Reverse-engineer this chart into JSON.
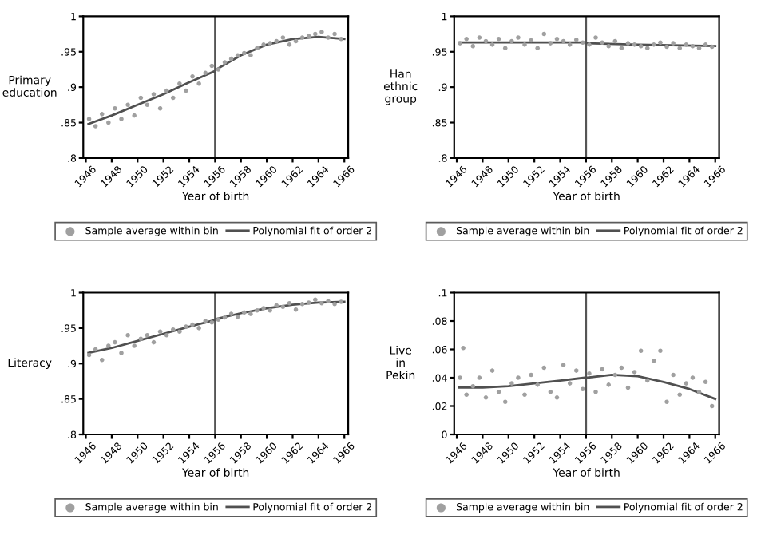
{
  "chart_data": [
    {
      "type": "scatter",
      "xlabel": "Year of birth",
      "ylabel": "Primary\neducation",
      "xlim": [
        1945.8,
        1966.3
      ],
      "ylim": [
        0.8,
        1
      ],
      "xticks": [
        1946,
        1948,
        1950,
        1952,
        1954,
        1956,
        1958,
        1960,
        1962,
        1964,
        1966
      ],
      "yticks": [
        {
          "value": 0.8,
          "label": ".8"
        },
        {
          "value": 0.85,
          "label": ".85"
        },
        {
          "value": 0.9,
          "label": ".9"
        },
        {
          "value": 0.95,
          "label": ".95"
        },
        {
          "value": 1,
          "label": "1"
        }
      ],
      "grid": false,
      "legend": "bottom",
      "marker": "circle",
      "ref_lines": [
        {
          "axis": "x",
          "value": 1956,
          "color": "#555555"
        }
      ],
      "series": [
        {
          "name": "Sample average within bin",
          "color": "#a0a0a0",
          "x": [
            1946.25,
            1946.75,
            1947.25,
            1947.75,
            1948.25,
            1948.75,
            1949.25,
            1949.75,
            1950.25,
            1950.75,
            1951.25,
            1951.75,
            1952.25,
            1952.75,
            1953.25,
            1953.75,
            1954.25,
            1954.75,
            1955.25,
            1955.75,
            1956.25,
            1956.75,
            1957.25,
            1957.75,
            1958.25,
            1958.75,
            1959.25,
            1959.75,
            1960.25,
            1960.75,
            1961.25,
            1961.75,
            1962.25,
            1962.75,
            1963.25,
            1963.75,
            1964.25,
            1964.75,
            1965.25,
            1965.75
          ],
          "values": [
            0.855,
            0.845,
            0.862,
            0.85,
            0.87,
            0.855,
            0.875,
            0.86,
            0.885,
            0.875,
            0.89,
            0.87,
            0.895,
            0.885,
            0.905,
            0.895,
            0.915,
            0.905,
            0.92,
            0.93,
            0.925,
            0.935,
            0.94,
            0.945,
            0.948,
            0.945,
            0.955,
            0.96,
            0.962,
            0.965,
            0.97,
            0.96,
            0.965,
            0.97,
            0.972,
            0.975,
            0.978,
            0.97,
            0.975,
            0.968
          ]
        },
        {
          "name": "Polynomial fit of order 2",
          "type": "line",
          "color": "#505050",
          "marker": "none",
          "line_style": "solid",
          "x": [
            1946.2,
            1948,
            1950,
            1952,
            1954,
            1955.9,
            1956,
            1956.1,
            1958,
            1960,
            1962,
            1964,
            1966
          ],
          "values": [
            0.848,
            0.86,
            0.875,
            0.89,
            0.907,
            0.922,
            null,
            0.925,
            0.945,
            0.96,
            0.968,
            0.971,
            0.968
          ]
        }
      ]
    },
    {
      "type": "scatter",
      "xlabel": "Year of birth",
      "ylabel": "Han\nethnic\ngroup",
      "xlim": [
        1945.8,
        1966.3
      ],
      "ylim": [
        0.8,
        1
      ],
      "xticks": [
        1946,
        1948,
        1950,
        1952,
        1954,
        1956,
        1958,
        1960,
        1962,
        1964,
        1966
      ],
      "yticks": [
        {
          "value": 0.8,
          "label": ".8"
        },
        {
          "value": 0.85,
          "label": ".85"
        },
        {
          "value": 0.9,
          "label": ".9"
        },
        {
          "value": 0.95,
          "label": ".95"
        },
        {
          "value": 1,
          "label": "1"
        }
      ],
      "grid": false,
      "legend": "bottom",
      "marker": "circle",
      "ref_lines": [
        {
          "axis": "x",
          "value": 1956,
          "color": "#555555"
        }
      ],
      "series": [
        {
          "name": "Sample average within bin",
          "color": "#a0a0a0",
          "x": [
            1946.25,
            1946.75,
            1947.25,
            1947.75,
            1948.25,
            1948.75,
            1949.25,
            1949.75,
            1950.25,
            1950.75,
            1951.25,
            1951.75,
            1952.25,
            1952.75,
            1953.25,
            1953.75,
            1954.25,
            1954.75,
            1955.25,
            1955.75,
            1956.25,
            1956.75,
            1957.25,
            1957.75,
            1958.25,
            1958.75,
            1959.25,
            1959.75,
            1960.25,
            1960.75,
            1961.25,
            1961.75,
            1962.25,
            1962.75,
            1963.25,
            1963.75,
            1964.25,
            1964.75,
            1965.25,
            1965.75
          ],
          "values": [
            0.962,
            0.968,
            0.958,
            0.97,
            0.965,
            0.96,
            0.968,
            0.955,
            0.965,
            0.97,
            0.96,
            0.966,
            0.955,
            0.975,
            0.962,
            0.968,
            0.965,
            0.96,
            0.967,
            0.963,
            0.96,
            0.97,
            0.963,
            0.958,
            0.965,
            0.955,
            0.962,
            0.96,
            0.958,
            0.955,
            0.96,
            0.963,
            0.957,
            0.962,
            0.955,
            0.96,
            0.958,
            0.955,
            0.96,
            0.957
          ]
        },
        {
          "name": "Polynomial fit of order 2",
          "type": "line",
          "color": "#505050",
          "marker": "none",
          "line_style": "solid",
          "x": [
            1946.2,
            1950,
            1955.9,
            1956,
            1956.1,
            1960,
            1966
          ],
          "values": [
            0.963,
            0.963,
            0.963,
            null,
            0.962,
            0.96,
            0.958
          ]
        }
      ]
    },
    {
      "type": "scatter",
      "xlabel": "Year of birth",
      "ylabel": "Literacy",
      "xlim": [
        1945.8,
        1966.3
      ],
      "ylim": [
        0.8,
        1
      ],
      "xticks": [
        1946,
        1948,
        1950,
        1952,
        1954,
        1956,
        1958,
        1960,
        1962,
        1964,
        1966
      ],
      "yticks": [
        {
          "value": 0.8,
          "label": ".8"
        },
        {
          "value": 0.85,
          "label": ".85"
        },
        {
          "value": 0.9,
          "label": ".9"
        },
        {
          "value": 0.95,
          "label": ".95"
        },
        {
          "value": 1,
          "label": "1"
        }
      ],
      "grid": false,
      "legend": "bottom",
      "marker": "circle",
      "ref_lines": [
        {
          "axis": "x",
          "value": 1956,
          "color": "#555555"
        }
      ],
      "series": [
        {
          "name": "Sample average within bin",
          "color": "#a0a0a0",
          "x": [
            1946.25,
            1946.75,
            1947.25,
            1947.75,
            1948.25,
            1948.75,
            1949.25,
            1949.75,
            1950.25,
            1950.75,
            1951.25,
            1951.75,
            1952.25,
            1952.75,
            1953.25,
            1953.75,
            1954.25,
            1954.75,
            1955.25,
            1955.75,
            1956.25,
            1956.75,
            1957.25,
            1957.75,
            1958.25,
            1958.75,
            1959.25,
            1959.75,
            1960.25,
            1960.75,
            1961.25,
            1961.75,
            1962.25,
            1962.75,
            1963.25,
            1963.75,
            1964.25,
            1964.75,
            1965.25,
            1965.75
          ],
          "values": [
            0.912,
            0.92,
            0.905,
            0.925,
            0.93,
            0.915,
            0.94,
            0.925,
            0.935,
            0.94,
            0.93,
            0.945,
            0.94,
            0.948,
            0.945,
            0.952,
            0.955,
            0.95,
            0.96,
            0.958,
            0.962,
            0.965,
            0.97,
            0.966,
            0.972,
            0.97,
            0.975,
            0.978,
            0.975,
            0.982,
            0.98,
            0.985,
            0.976,
            0.984,
            0.986,
            0.99,
            0.985,
            0.988,
            0.984,
            0.987
          ]
        },
        {
          "name": "Polynomial fit of order 2",
          "type": "line",
          "color": "#505050",
          "marker": "none",
          "line_style": "solid",
          "x": [
            1946.2,
            1948,
            1950,
            1952,
            1954,
            1955.9,
            1956,
            1956.1,
            1958,
            1960,
            1962,
            1964,
            1966
          ],
          "values": [
            0.915,
            0.922,
            0.932,
            0.942,
            0.952,
            0.961,
            null,
            0.963,
            0.971,
            0.978,
            0.983,
            0.986,
            0.987
          ]
        }
      ]
    },
    {
      "type": "scatter",
      "xlabel": "Year of birth",
      "ylabel": "Live\nin\nPekin",
      "xlim": [
        1945.8,
        1966.3
      ],
      "ylim": [
        0,
        0.1
      ],
      "xticks": [
        1946,
        1948,
        1950,
        1952,
        1954,
        1956,
        1958,
        1960,
        1962,
        1964,
        1966
      ],
      "yticks": [
        0,
        {
          "value": 0.02,
          "label": ".02"
        },
        {
          "value": 0.04,
          "label": ".04"
        },
        {
          "value": 0.06,
          "label": ".06"
        },
        {
          "value": 0.08,
          "label": ".08"
        },
        {
          "value": 0.1,
          "label": ".1"
        }
      ],
      "grid": false,
      "legend": "bottom",
      "marker": "circle",
      "ref_lines": [
        {
          "axis": "x",
          "value": 1956,
          "color": "#555555"
        }
      ],
      "series": [
        {
          "name": "Sample average within bin",
          "color": "#a0a0a0",
          "x": [
            1946.25,
            1946.5,
            1946.75,
            1947.25,
            1947.75,
            1948.25,
            1948.75,
            1949.25,
            1949.75,
            1950.25,
            1950.75,
            1951.25,
            1951.75,
            1952.25,
            1952.75,
            1953.25,
            1953.75,
            1954.25,
            1954.75,
            1955.25,
            1955.75,
            1956.25,
            1956.75,
            1957.25,
            1957.75,
            1958.25,
            1958.75,
            1959.25,
            1959.75,
            1960.25,
            1960.75,
            1961.25,
            1961.75,
            1962.25,
            1962.75,
            1963.25,
            1963.75,
            1964.25,
            1964.75,
            1965.25,
            1965.75
          ],
          "values": [
            0.04,
            0.061,
            0.028,
            0.034,
            0.04,
            0.026,
            0.045,
            0.03,
            0.023,
            0.036,
            0.04,
            0.028,
            0.042,
            0.035,
            0.047,
            0.03,
            0.026,
            0.049,
            0.036,
            0.045,
            0.032,
            0.043,
            0.03,
            0.046,
            0.035,
            0.042,
            0.047,
            0.033,
            0.044,
            0.059,
            0.038,
            0.052,
            0.059,
            0.023,
            0.042,
            0.028,
            0.036,
            0.04,
            0.03,
            0.037,
            0.02
          ]
        },
        {
          "name": "Polynomial fit of order 2",
          "type": "line",
          "color": "#505050",
          "marker": "none",
          "line_style": "solid",
          "x": [
            1946.2,
            1948,
            1950,
            1952,
            1954,
            1955.9,
            1956,
            1956.1,
            1958,
            1960,
            1962,
            1964,
            1966
          ],
          "values": [
            0.033,
            0.033,
            0.034,
            0.036,
            0.038,
            0.04,
            null,
            0.04,
            0.042,
            0.041,
            0.037,
            0.032,
            0.025
          ]
        }
      ]
    }
  ]
}
